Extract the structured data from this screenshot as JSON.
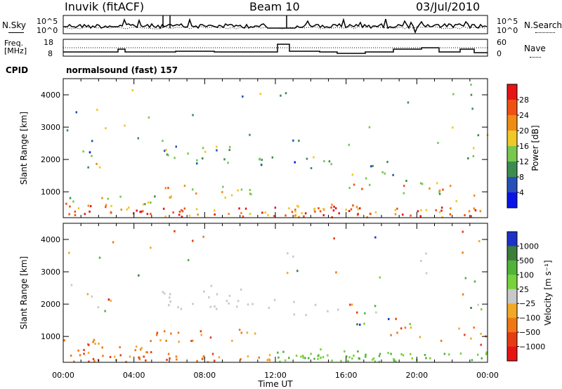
{
  "header": {
    "station": "Inuvik (fitACF)",
    "beam": "Beam 10",
    "date": "03/Jul/2010"
  },
  "noise_panel": {
    "left_label": "N.Sky",
    "right_label": "N.Search",
    "left_ticks": [
      "10^5",
      "10^0"
    ],
    "right_ticks": [
      "10^5",
      "10^0"
    ]
  },
  "freq_panel": {
    "left_label_line1": "Freq.",
    "left_label_line2": "[MHz]",
    "right_label": "Nave",
    "left_ticks": [
      "18",
      "8"
    ],
    "right_ticks": [
      "60",
      "0"
    ]
  },
  "cpid": {
    "label": "CPID",
    "mode_text": "normalsound (fast) 157"
  },
  "chart_data": [
    {
      "type": "heatmap",
      "title": "",
      "ylabel": "Slant Range [km]",
      "xlabel": "",
      "ylim": [
        200,
        4500
      ],
      "y_ticks": [
        "1000",
        "2000",
        "3000",
        "4000"
      ],
      "x_range_hours": [
        0,
        24
      ],
      "colorbar": {
        "label": "Power [dB]",
        "range": [
          0,
          32
        ],
        "tick_labels": [
          "4",
          "8",
          "12",
          "16",
          "20",
          "24",
          "28"
        ],
        "colors": [
          "#0a14e6",
          "#2850b8",
          "#3c8c50",
          "#78c850",
          "#f0c828",
          "#f08c14",
          "#f05014",
          "#e61414"
        ]
      }
    },
    {
      "type": "heatmap",
      "title": "",
      "ylabel": "Slant Range [km]",
      "xlabel": "Time UT",
      "ylim": [
        200,
        4500
      ],
      "y_ticks": [
        "1000",
        "2000",
        "3000",
        "4000"
      ],
      "x_ticks": [
        "00:00",
        "04:00",
        "08:00",
        "12:00",
        "16:00",
        "20:00",
        "00:00"
      ],
      "colorbar": {
        "label": "Velocity [m s⁻¹]",
        "tick_labels": [
          "1000",
          "500",
          "100",
          "25",
          "−25",
          "−100",
          "−500",
          "−1000"
        ],
        "colors": [
          "#1e32c8",
          "#3c7c3c",
          "#50b43c",
          "#78d23c",
          "#c8c8c8",
          "#f0aa28",
          "#f07814",
          "#e63c14",
          "#e61414"
        ]
      }
    }
  ]
}
